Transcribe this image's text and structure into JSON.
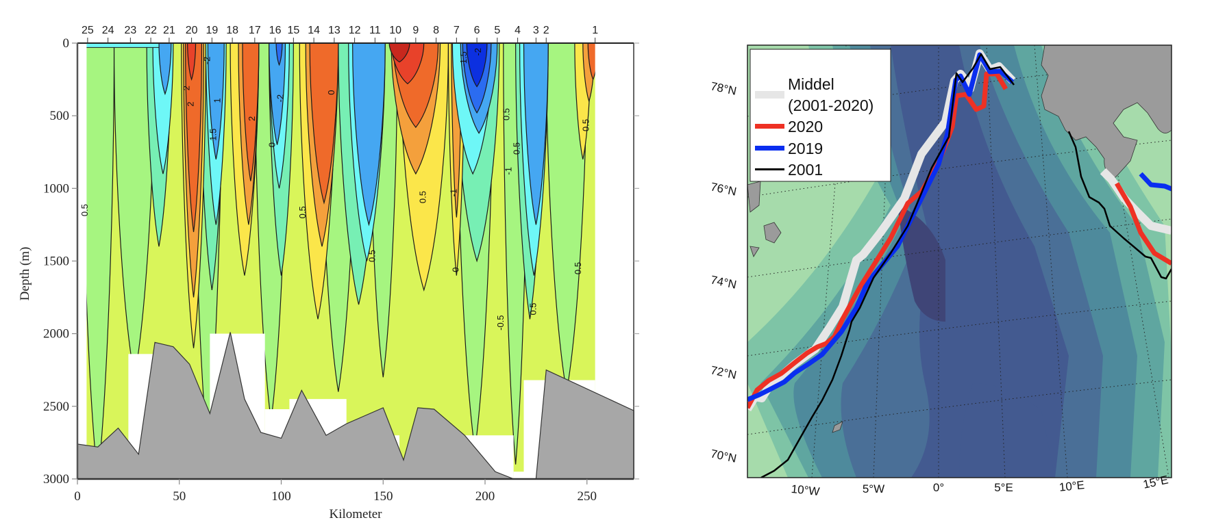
{
  "chart_data": [
    {
      "type": "heatmap",
      "subtype": "filled-contour-section",
      "xlabel": "Kilometer",
      "ylabel": "Depth (m)",
      "xlim": [
        0,
        273
      ],
      "ylim": [
        3000,
        0
      ],
      "x_ticks": [
        0,
        50,
        100,
        150,
        200,
        250
      ],
      "y_ticks": [
        0,
        500,
        1000,
        1500,
        2000,
        2500,
        3000
      ],
      "grid": false,
      "stations": [
        {
          "label": "25",
          "km": 5
        },
        {
          "label": "24",
          "km": 15
        },
        {
          "label": "23",
          "km": 26
        },
        {
          "label": "22",
          "km": 36
        },
        {
          "label": "21",
          "km": 45
        },
        {
          "label": "20",
          "km": 56
        },
        {
          "label": "19",
          "km": 66
        },
        {
          "label": "18",
          "km": 76
        },
        {
          "label": "17",
          "km": 87
        },
        {
          "label": "16",
          "km": 97
        },
        {
          "label": "15",
          "km": 106
        },
        {
          "label": "14",
          "km": 116
        },
        {
          "label": "13",
          "km": 126
        },
        {
          "label": "12",
          "km": 136
        },
        {
          "label": "11",
          "km": 146
        },
        {
          "label": "10",
          "km": 156
        },
        {
          "label": "9",
          "km": 166
        },
        {
          "label": "8",
          "km": 176
        },
        {
          "label": "7",
          "km": 186
        },
        {
          "label": "6",
          "km": 196
        },
        {
          "label": "5",
          "km": 206
        },
        {
          "label": "4",
          "km": 216
        },
        {
          "label": "3",
          "km": 225
        },
        {
          "label": "2",
          "km": 230
        },
        {
          "label": "1",
          "km": 254
        }
      ],
      "contour_labels": [
        "0.5",
        "0.5",
        "0.5",
        "0.5",
        "0.5",
        "0.5",
        "0.5",
        "0.5",
        "0.5",
        "-0.5",
        "-1",
        "-1",
        "1",
        "2",
        "2",
        "2",
        "-2",
        "-2",
        "-2",
        "-1.5",
        "1.5",
        "0",
        "0",
        "0"
      ],
      "colors": {
        "deep_red": "#c8281e",
        "red": "#e8422a",
        "orange": "#ef6a2a",
        "light_orange": "#f4a03c",
        "yellow": "#fbe64a",
        "yellow_green": "#d9f55a",
        "light_green": "#a6f580",
        "aqua_green": "#77efb4",
        "cyan": "#6ef7f7",
        "light_blue": "#45a7f2",
        "blue": "#2b6cf0",
        "dark_blue": "#0c30e0",
        "bottom": "#a7a7a7"
      },
      "bathymetry": {
        "km": [
          0,
          10,
          20,
          30,
          38,
          47,
          55,
          65,
          75,
          82,
          90,
          100,
          110,
          122,
          132,
          150,
          160,
          167,
          175,
          190,
          205,
          214,
          225,
          230,
          273
        ],
        "depth_m": [
          2760,
          2780,
          2650,
          2830,
          2060,
          2090,
          2210,
          2550,
          1990,
          2450,
          2680,
          2720,
          2390,
          2700,
          2620,
          2510,
          2870,
          2510,
          2520,
          2700,
          2950,
          3000,
          3000,
          2250,
          2530
        ]
      }
    },
    {
      "type": "line",
      "subtype": "map-front-positions",
      "x_ticks": [
        "10°W",
        "5°W",
        "0°",
        "5°E",
        "10°E",
        "15°E"
      ],
      "y_ticks": [
        "70°N",
        "72°N",
        "74°N",
        "76°N",
        "78°N"
      ],
      "legend_position": "top-left",
      "series": [
        {
          "name": "Middel",
          "name_line2": "(2001-2020)",
          "color": "#e6e6e6"
        },
        {
          "name": "2020",
          "color": "#ee3124"
        },
        {
          "name": "2019",
          "color": "#0a2ef0"
        },
        {
          "name": "2001",
          "color": "#000000"
        }
      ],
      "colors": {
        "shelf": "#a6dbab",
        "slope1": "#7ec4a6",
        "slope2": "#5fa6a0",
        "deep1": "#4e8a9c",
        "deep2": "#4a6f97",
        "deep3": "#435a90",
        "abyss": "#3f4577",
        "land": "#9b9b9b",
        "coast": "#dff0b0"
      }
    }
  ]
}
